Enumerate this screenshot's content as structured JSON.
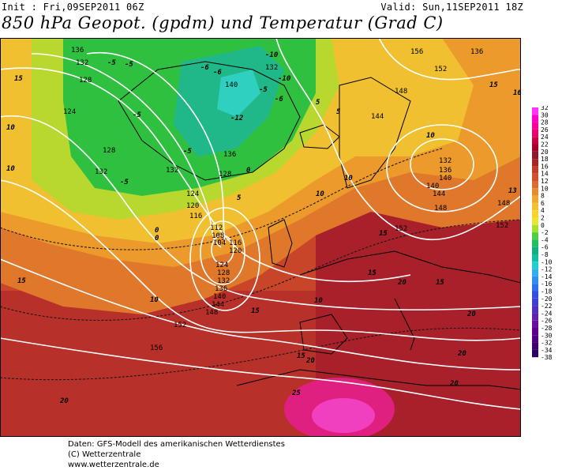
{
  "header": {
    "init": "Init : Fri,09SEP2011 06Z",
    "valid": "Valid: Sun,11SEP2011 18Z",
    "title": "850 hPa Geopot. (gpdm) und Temperatur (Grad C)"
  },
  "legend": {
    "ticks": [
      "32",
      "30",
      "28",
      "26",
      "24",
      "22",
      "20",
      "18",
      "16",
      "14",
      "12",
      "10",
      "8",
      "6",
      "4",
      "2",
      "0",
      "-2",
      "-4",
      "-6",
      "-8",
      "-10",
      "-12",
      "-14",
      "-16",
      "-18",
      "-20",
      "-22",
      "-24",
      "-26",
      "-28",
      "-30",
      "-32",
      "-34",
      "-38"
    ],
    "colors": [
      "#ff33ff",
      "#ff00cc",
      "#ff0099",
      "#e8006e",
      "#c80042",
      "#a6002a",
      "#8c1a2a",
      "#a62626",
      "#c23c2b",
      "#d25030",
      "#dd6a30",
      "#e68a2e",
      "#f0a830",
      "#f4c230",
      "#f6d42c",
      "#e8e830",
      "#a8e030",
      "#50d040",
      "#20c060",
      "#10b080",
      "#10c0a0",
      "#20d0d0",
      "#30b0e8",
      "#3090f0",
      "#3070f0",
      "#3050e0",
      "#4040d0",
      "#5030c0",
      "#6020b0",
      "#6a10a0",
      "#600090",
      "#500080",
      "#400070",
      "#300060"
    ]
  },
  "map": {
    "geopot_labels": [
      "136",
      "132",
      "128",
      "124",
      "132",
      "128",
      "132",
      "140",
      "136",
      "132",
      "128",
      "124",
      "120",
      "116",
      "112",
      "108",
      "104",
      "116",
      "120",
      "124",
      "128",
      "132",
      "136",
      "140",
      "144",
      "148",
      "152",
      "156",
      "152",
      "148",
      "144",
      "140",
      "136",
      "132",
      "136",
      "140",
      "144",
      "148",
      "152",
      "156",
      "148",
      "152"
    ],
    "temp_labels": [
      "15",
      "-5",
      "-5",
      "-6",
      "-6",
      "-10",
      "-10",
      "-12",
      "-5",
      "-6",
      "-5",
      "-5",
      "0",
      "5",
      "10",
      "10",
      "5",
      "0",
      "10",
      "10",
      "15",
      "15",
      "15",
      "20",
      "20",
      "15",
      "20",
      "20",
      "20",
      "20",
      "25",
      "15",
      "15",
      "15",
      "10",
      "10",
      "13",
      "16",
      "10",
      "0",
      "-5",
      "5"
    ]
  },
  "footer": {
    "line1": "Daten: GFS-Modell des amerikanischen Wetterdienstes",
    "line2": "(C) Wetterzentrale",
    "line3": "www.wetterzentrale.de"
  }
}
